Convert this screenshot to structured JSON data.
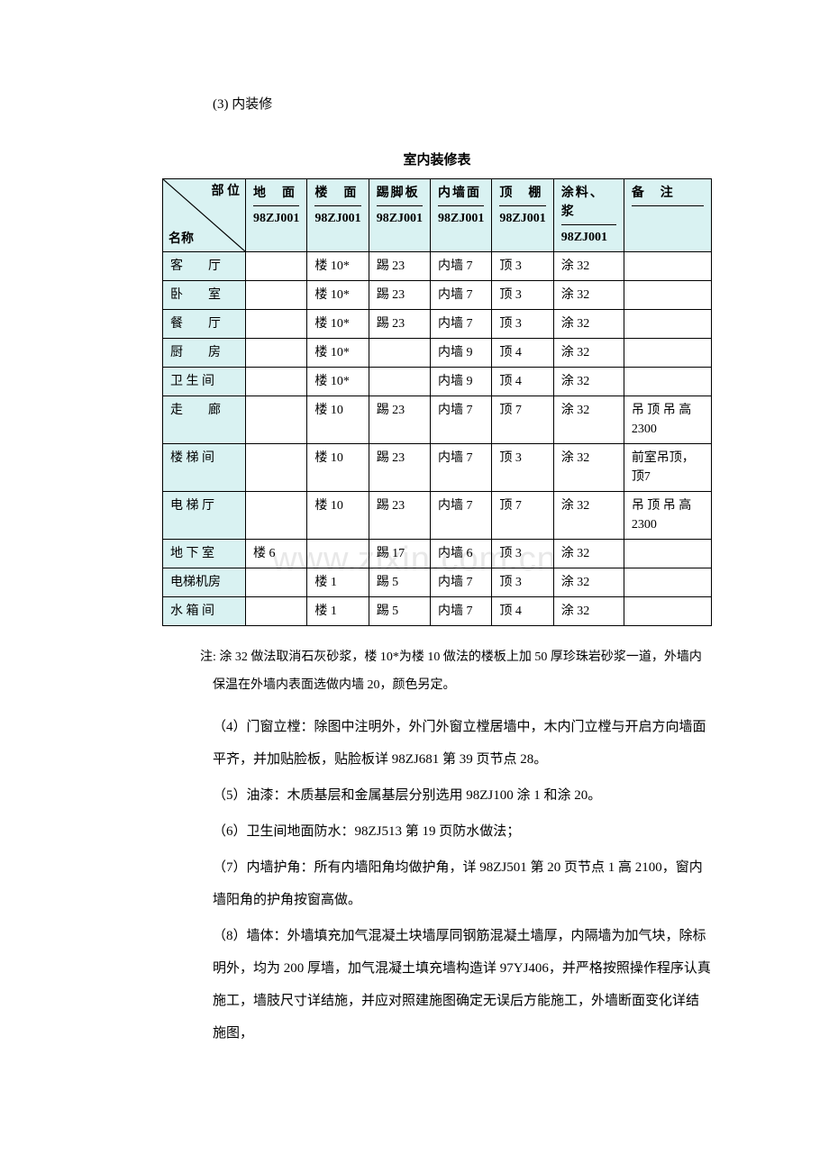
{
  "watermark": "www.zixin.com.cn",
  "section_label": "(3) 内装修",
  "table": {
    "title": "室内装修表",
    "diag_top": "部 位",
    "diag_bottom": "名称",
    "columns": [
      {
        "top": "地　面",
        "bottom": "98ZJ001"
      },
      {
        "top": "楼　面",
        "bottom": "98ZJ001"
      },
      {
        "top": "踢脚板",
        "bottom": "98ZJ001"
      },
      {
        "top": "内墙面",
        "bottom": "98ZJ001"
      },
      {
        "top": "顶　棚",
        "bottom": "98ZJ001"
      },
      {
        "top": "涂料、浆",
        "bottom": "98ZJ001"
      },
      {
        "top": "备　注",
        "bottom": ""
      }
    ],
    "rows": [
      {
        "label": "客　　厅",
        "cells": [
          "",
          "楼 10*",
          "踢 23",
          "内墙 7",
          "顶 3",
          "涂 32",
          ""
        ]
      },
      {
        "label": "卧　　室",
        "cells": [
          "",
          "楼 10*",
          "踢 23",
          "内墙 7",
          "顶 3",
          "涂 32",
          ""
        ]
      },
      {
        "label": "餐　　厅",
        "cells": [
          "",
          "楼 10*",
          "踢 23",
          "内墙 7",
          "顶 3",
          "涂 32",
          ""
        ]
      },
      {
        "label": "厨　　房",
        "cells": [
          "",
          "楼 10*",
          "",
          "内墙 9",
          "顶 4",
          "涂 32",
          ""
        ]
      },
      {
        "label": "卫 生 间",
        "cells": [
          "",
          "楼 10*",
          "",
          "内墙 9",
          "顶 4",
          "涂 32",
          ""
        ]
      },
      {
        "label": "走　　廊",
        "cells": [
          "",
          "楼 10",
          "踢 23",
          "内墙 7",
          "顶 7",
          "涂 32",
          "吊 顶 吊 高2300"
        ]
      },
      {
        "label": "楼 梯 间",
        "cells": [
          "",
          "楼 10",
          "踢 23",
          "内墙 7",
          "顶 3",
          "涂 32",
          "前室吊顶，顶7"
        ]
      },
      {
        "label": "电 梯 厅",
        "cells": [
          "",
          "楼 10",
          "踢 23",
          "内墙 7",
          "顶 7",
          "涂 32",
          "吊 顶 吊 高2300"
        ]
      },
      {
        "label": "地 下 室",
        "cells": [
          "楼 6",
          "",
          "踢 17",
          "内墙 6",
          "顶 3",
          "涂 32",
          ""
        ]
      },
      {
        "label": "电梯机房",
        "cells": [
          "",
          "楼 1",
          "踢 5",
          "内墙 7",
          "顶 3",
          "涂 32",
          ""
        ]
      },
      {
        "label": "水 箱 间",
        "cells": [
          "",
          "楼 1",
          "踢 5",
          "内墙 7",
          "顶 4",
          "涂 32",
          ""
        ]
      }
    ]
  },
  "note": "注: 涂 32 做法取消石灰砂浆，楼 10*为楼 10 做法的楼板上加 50 厚珍珠岩砂浆一道，外墙内保温在外墙内表面选做内墙 20，颜色另定。",
  "paragraphs": {
    "p4": "（4）门窗立樘：除图中注明外，外门外窗立樘居墙中，木内门立樘与开启方向墙面平齐，并加贴脸板，贴脸板详 98ZJ681 第 39 页节点 28。",
    "p5": "（5）油漆：木质基层和金属基层分别选用 98ZJ100 涂 1 和涂 20。",
    "p6": "（6）卫生间地面防水：98ZJ513 第 19 页防水做法；",
    "p7": "（7）内墙护角：所有内墙阳角均做护角，详 98ZJ501 第 20 页节点 1 高 2100，窗内墙阳角的护角按窗高做。",
    "p8": "（8）墙体：外墙填充加气混凝土块墙厚同钢筋混凝土墙厚，内隔墙为加气块，除标明外，均为 200 厚墙，加气混凝土填充墙构造详 97YJ406，并严格按照操作程序认真施工，墙肢尺寸详结施，并应对照建施图确定无误后方能施工，外墙断面变化详结施图，"
  },
  "colors": {
    "header_bg": "#d9f2f2",
    "border": "#000000",
    "text": "#000000",
    "watermark": "#e8e8e8"
  }
}
